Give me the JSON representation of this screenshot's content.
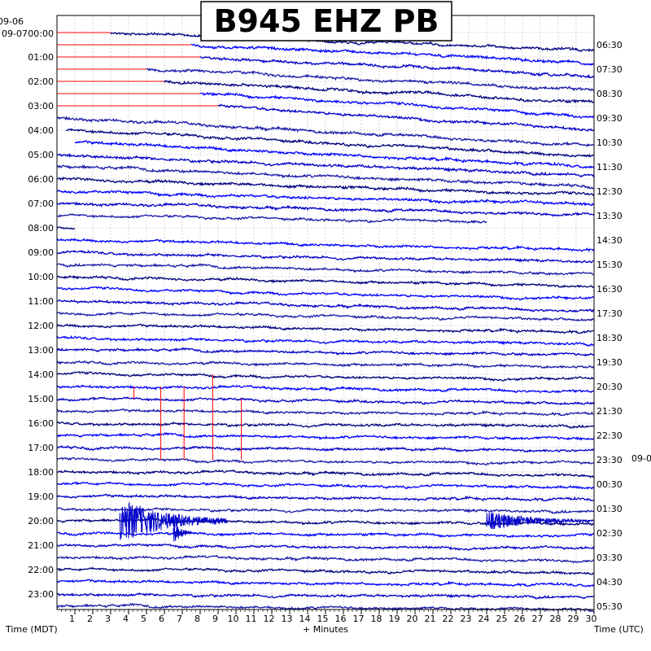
{
  "chart_data": {
    "type": "line",
    "title": "B945 EHZ PB",
    "xlabel": "+ Minutes",
    "left_axis_title": "Time (MDT)",
    "right_axis_title": "Time (UTC)",
    "xlim": [
      0,
      30
    ],
    "x_ticks": [
      "1",
      "2",
      "3",
      "4",
      "5",
      "6",
      "7",
      "8",
      "9",
      "10",
      "11",
      "12",
      "13",
      "14",
      "15",
      "16",
      "17",
      "18",
      "19",
      "20",
      "21",
      "22",
      "23",
      "24",
      "25",
      "26",
      "27",
      "28",
      "29",
      "30"
    ],
    "left_date_top": "09-06",
    "left_date_main": "09-07",
    "right_date_mid": "09-0",
    "left_hours": [
      "00:00",
      "01:00",
      "02:00",
      "03:00",
      "04:00",
      "05:00",
      "06:00",
      "07:00",
      "08:00",
      "09:00",
      "10:00",
      "11:00",
      "12:00",
      "13:00",
      "14:00",
      "15:00",
      "16:00",
      "17:00",
      "18:00",
      "19:00",
      "20:00",
      "21:00",
      "22:00",
      "23:00"
    ],
    "right_hours": [
      "06:30",
      "07:30",
      "08:30",
      "09:30",
      "10:30",
      "11:30",
      "12:30",
      "13:30",
      "14:30",
      "15:30",
      "16:30",
      "17:30",
      "18:30",
      "19:30",
      "20:30",
      "21:30",
      "22:30",
      "23:30",
      "00:30",
      "01:30",
      "02:30",
      "03:30",
      "04:30",
      "05:30"
    ],
    "grid": true,
    "trace_colors": [
      "#00007f",
      "#0000ff",
      "#0000c8",
      "#1a1aa8"
    ],
    "clip_color": "#ff0000",
    "traces": [
      {
        "row": 0,
        "drift": 22,
        "start": 3,
        "end": 30,
        "noise": 2.2
      },
      {
        "row": 1,
        "drift": 22,
        "start": 7.5,
        "end": 30,
        "noise": 2.4
      },
      {
        "row": 2,
        "drift": 24,
        "start": 8,
        "end": 30,
        "noise": 2.4
      },
      {
        "row": 3,
        "drift": 26,
        "start": 5,
        "end": 30,
        "noise": 2.4
      },
      {
        "row": 4,
        "drift": 26,
        "start": 6,
        "end": 30,
        "noise": 2.4
      },
      {
        "row": 5,
        "drift": 28,
        "start": 8,
        "end": 30,
        "noise": 2.4
      },
      {
        "row": 6,
        "drift": 30,
        "start": 9,
        "end": 30,
        "noise": 2.4
      },
      {
        "row": 7,
        "drift": 34,
        "start": 0,
        "end": 30,
        "noise": 2.4
      },
      {
        "row": 8,
        "drift": 32,
        "start": 0.5,
        "end": 30,
        "noise": 2.4
      },
      {
        "row": 9,
        "drift": 30,
        "start": 1,
        "end": 30,
        "noise": 2.4
      },
      {
        "row": 10,
        "drift": 26,
        "start": 0,
        "end": 30,
        "noise": 2.4
      },
      {
        "row": 11,
        "drift": 24,
        "start": 0,
        "end": 30,
        "noise": 2.4
      },
      {
        "row": 12,
        "drift": 20,
        "start": 0,
        "end": 30,
        "noise": 2.4
      },
      {
        "row": 13,
        "drift": 16,
        "start": 0,
        "end": 30,
        "noise": 2.4
      },
      {
        "row": 14,
        "drift": 14,
        "start": 0,
        "end": 30,
        "noise": 2.2
      },
      {
        "row": 15,
        "drift": 10,
        "start": 0,
        "end": 24,
        "noise": 2.0
      },
      {
        "row": 16,
        "drift": 4,
        "start": 0,
        "end": 1,
        "noise": 1.5
      },
      {
        "row": 17,
        "drift": 12,
        "start": 0,
        "end": 30,
        "noise": 2.0
      },
      {
        "row": 18,
        "drift": 12,
        "start": 0,
        "end": 30,
        "noise": 2.0
      },
      {
        "row": 19,
        "drift": 12,
        "start": 0,
        "end": 30,
        "noise": 2.0
      },
      {
        "row": 20,
        "drift": 12,
        "start": 0,
        "end": 30,
        "noise": 2.0
      },
      {
        "row": 21,
        "drift": 12,
        "start": 0,
        "end": 30,
        "noise": 2.0
      },
      {
        "row": 22,
        "drift": 12,
        "start": 0,
        "end": 30,
        "noise": 2.0
      },
      {
        "row": 23,
        "drift": 8,
        "start": 0,
        "end": 30,
        "noise": 2.0
      },
      {
        "row": 24,
        "drift": 8,
        "start": 0,
        "end": 30,
        "noise": 2.0
      },
      {
        "row": 25,
        "drift": 8,
        "start": 0,
        "end": 30,
        "noise": 2.0
      },
      {
        "row": 26,
        "drift": 6,
        "start": 0,
        "end": 30,
        "noise": 2.0
      },
      {
        "row": 27,
        "drift": 6,
        "start": 0,
        "end": 30,
        "noise": 2.0
      },
      {
        "row": 28,
        "drift": 6,
        "start": 0,
        "end": 30,
        "noise": 2.0
      },
      {
        "row": 29,
        "drift": 6,
        "start": 0,
        "end": 30,
        "noise": 2.0
      },
      {
        "row": 30,
        "drift": 6,
        "start": 0,
        "end": 30,
        "noise": 2.0
      },
      {
        "row": 31,
        "drift": 4,
        "start": 0,
        "end": 30,
        "noise": 2.0
      },
      {
        "row": 32,
        "drift": 4,
        "start": 0,
        "end": 30,
        "noise": 2.0
      },
      {
        "row": 33,
        "drift": 4,
        "start": 0,
        "end": 30,
        "noise": 2.0
      },
      {
        "row": 34,
        "drift": 4,
        "start": 0,
        "end": 30,
        "noise": 2.0
      },
      {
        "row": 35,
        "drift": 4,
        "start": 0,
        "end": 30,
        "noise": 2.0
      },
      {
        "row": 36,
        "drift": 4,
        "start": 0,
        "end": 30,
        "noise": 2.0
      },
      {
        "row": 37,
        "drift": 4,
        "start": 0,
        "end": 30,
        "noise": 2.0
      },
      {
        "row": 38,
        "drift": 4,
        "start": 0,
        "end": 30,
        "noise": 2.0
      },
      {
        "row": 39,
        "drift": 4,
        "start": 0,
        "end": 30,
        "noise": 2.0
      },
      {
        "row": 40,
        "drift": 4,
        "start": 0,
        "end": 30,
        "noise": 2.0
      },
      {
        "row": 41,
        "drift": 4,
        "start": 0,
        "end": 30,
        "noise": 2.0
      },
      {
        "row": 42,
        "drift": 4,
        "start": 0,
        "end": 30,
        "noise": 2.0
      },
      {
        "row": 43,
        "drift": 4,
        "start": 0,
        "end": 30,
        "noise": 2.0
      },
      {
        "row": 44,
        "drift": 4,
        "start": 0,
        "end": 30,
        "noise": 2.0
      },
      {
        "row": 45,
        "drift": 4,
        "start": 0,
        "end": 30,
        "noise": 2.0
      },
      {
        "row": 46,
        "drift": 4,
        "start": 0,
        "end": 30,
        "noise": 2.0
      },
      {
        "row": 47,
        "drift": 4,
        "start": 0,
        "end": 30,
        "noise": 2.0
      }
    ],
    "events": [
      {
        "row": 40,
        "start": 3.5,
        "end": 9.5,
        "amplitude": 28
      },
      {
        "row": 41,
        "start": 6.5,
        "end": 7.5,
        "amplitude": 14
      },
      {
        "row": 40,
        "start": 24,
        "end": 30,
        "amplitude": 12
      }
    ],
    "red_spikes": [
      {
        "minute": 4.3,
        "from_row": 29,
        "to_row": 30
      },
      {
        "minute": 5.8,
        "from_row": 29,
        "to_row": 35
      },
      {
        "minute": 7.1,
        "from_row": 29,
        "to_row": 35
      },
      {
        "minute": 8.7,
        "from_row": 28,
        "to_row": 35
      },
      {
        "minute": 10.3,
        "from_row": 30,
        "to_row": 35
      }
    ]
  }
}
